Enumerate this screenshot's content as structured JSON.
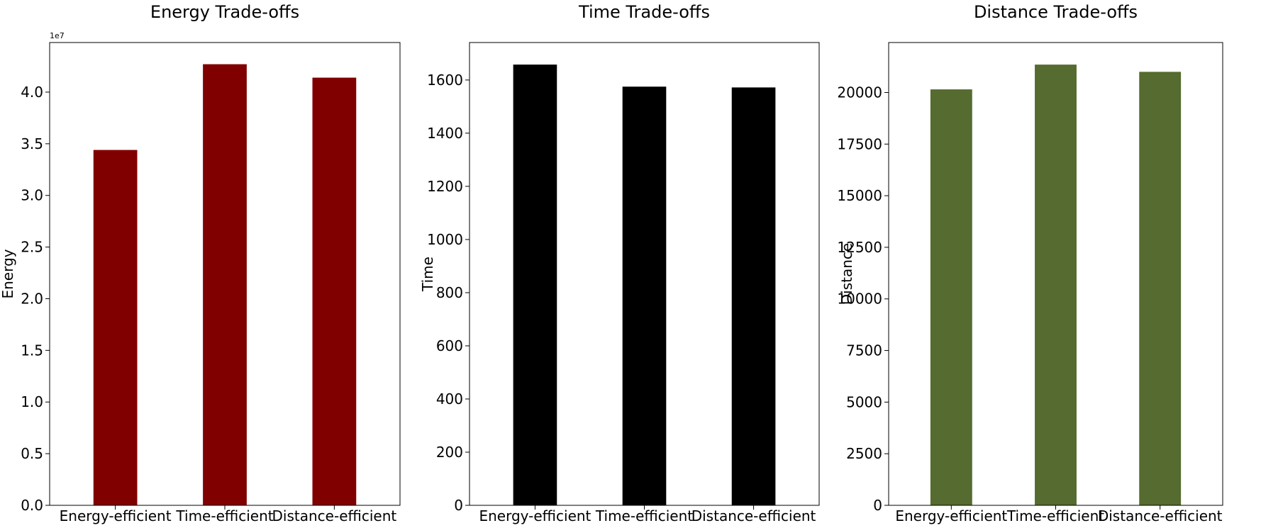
{
  "chart_data": [
    {
      "type": "bar",
      "title": "Energy Trade-offs",
      "xlabel": "",
      "ylabel": "Energy",
      "categories": [
        "Energy-efficient",
        "Time-efficient",
        "Distance-efficient"
      ],
      "values": [
        34400000,
        42700000,
        41400000
      ],
      "color": "#800000",
      "ylim": [
        0,
        44800000
      ],
      "ytick_values": [
        0,
        5000000,
        10000000,
        15000000,
        20000000,
        25000000,
        30000000,
        35000000,
        40000000
      ],
      "ytick_labels": [
        "0.0",
        "0.5",
        "1.0",
        "1.5",
        "2.0",
        "2.5",
        "3.0",
        "3.5",
        "4.0"
      ],
      "offset_label": "1e7",
      "grid": false,
      "legend": "none"
    },
    {
      "type": "bar",
      "title": "Time Trade-offs",
      "xlabel": "",
      "ylabel": "Time",
      "categories": [
        "Energy-efficient",
        "Time-efficient",
        "Distance-efficient"
      ],
      "values": [
        1658,
        1575,
        1572
      ],
      "color": "#000000",
      "ylim": [
        0,
        1741
      ],
      "ytick_values": [
        0,
        200,
        400,
        600,
        800,
        1000,
        1200,
        1400,
        1600
      ],
      "ytick_labels": [
        "0",
        "200",
        "400",
        "600",
        "800",
        "1000",
        "1200",
        "1400",
        "1600"
      ],
      "offset_label": "",
      "grid": false,
      "legend": "none"
    },
    {
      "type": "bar",
      "title": "Distance Trade-offs",
      "xlabel": "",
      "ylabel": "Distance",
      "categories": [
        "Energy-efficient",
        "Time-efficient",
        "Distance-efficient"
      ],
      "values": [
        20150,
        21350,
        21000
      ],
      "color": "#556b2f",
      "ylim": [
        0,
        22420
      ],
      "ytick_values": [
        0,
        2500,
        5000,
        7500,
        10000,
        12500,
        15000,
        17500,
        20000
      ],
      "ytick_labels": [
        "0",
        "2500",
        "5000",
        "7500",
        "10000",
        "12500",
        "15000",
        "17500",
        "20000"
      ],
      "offset_label": "",
      "grid": false,
      "legend": "none"
    }
  ]
}
